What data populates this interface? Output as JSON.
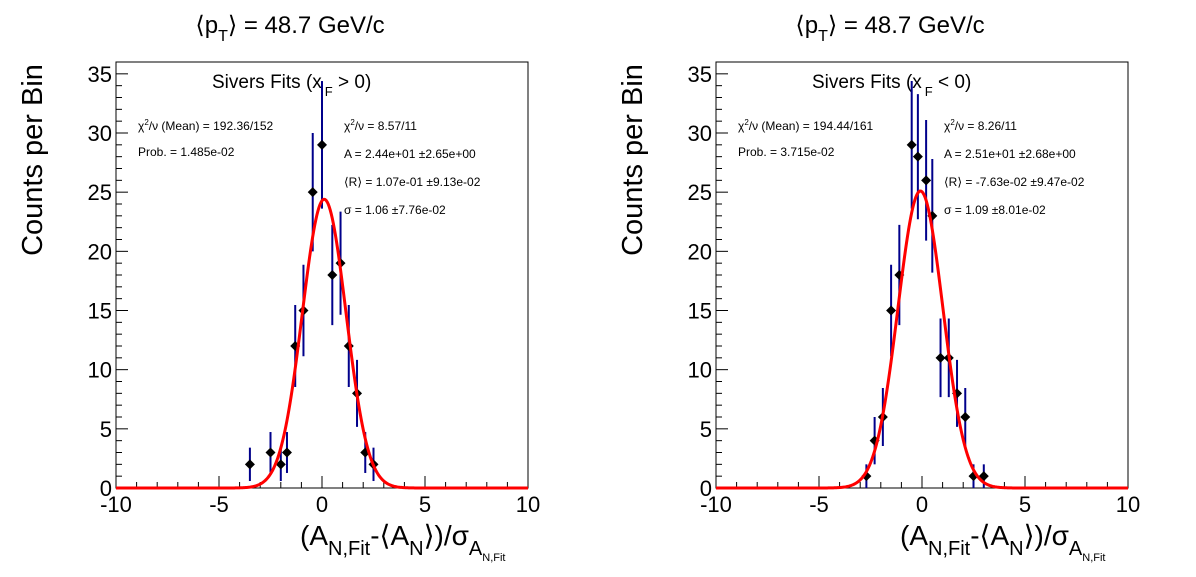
{
  "colors": {
    "fit": "#ff0000",
    "errorbar": "#00008b",
    "marker": "#000000",
    "frame": "#000000"
  },
  "chart_data": [
    {
      "type": "scatter",
      "title": {
        "prefix": "⟨p",
        "sub": "T",
        "suffix": "⟩ = 48.7 GeV/c"
      },
      "fit_title": {
        "prefix": "Sivers Fits (x",
        "sub": "F",
        "suffix": " > 0)"
      },
      "xlabel": {
        "main1": "(A",
        "sub1": "N,Fit",
        "main2": "-⟨A",
        "sub2": "N",
        "main3": "⟩)/σ",
        "sub3": "A",
        "subsub3": "N,Fit"
      },
      "ylabel": "Counts per Bin",
      "xlim": [
        -10,
        10
      ],
      "ylim": [
        0,
        36
      ],
      "xticks": [
        "-10",
        "-5",
        "0",
        "5",
        "10"
      ],
      "yticks": [
        "0",
        "5",
        "10",
        "15",
        "20",
        "25",
        "30",
        "35"
      ],
      "stats_left": [
        {
          "pre": "χ",
          "sup": "2",
          "post": "/ν  (Mean) = 192.36/152"
        },
        {
          "pre": "Prob. = 1.485e-02",
          "sup": "",
          "post": ""
        }
      ],
      "stats_right": [
        {
          "pre": "χ",
          "sup": "2",
          "post": "/ν  = 8.57/11"
        },
        {
          "pre": "A = 2.44e+01 ±2.65e+00",
          "sup": "",
          "post": ""
        },
        {
          "pre": "⟨R⟩ = 1.07e-01 ±9.13e-02",
          "sup": "",
          "post": ""
        },
        {
          "pre": "σ = 1.06 ±7.76e-02",
          "sup": "",
          "post": ""
        }
      ],
      "fit": {
        "A": 24.4,
        "mean": 0.107,
        "sigma": 1.06
      },
      "points": [
        {
          "x": -3.5,
          "y": 2,
          "err": 1.41
        },
        {
          "x": -2.5,
          "y": 3,
          "err": 1.73
        },
        {
          "x": -2.0,
          "y": 2,
          "err": 1.41
        },
        {
          "x": -1.7,
          "y": 3,
          "err": 1.73
        },
        {
          "x": -1.3,
          "y": 12,
          "err": 3.46
        },
        {
          "x": -0.9,
          "y": 15,
          "err": 3.87
        },
        {
          "x": -0.45,
          "y": 25,
          "err": 5.0
        },
        {
          "x": 0.0,
          "y": 29,
          "err": 5.39
        },
        {
          "x": 0.5,
          "y": 18,
          "err": 4.24
        },
        {
          "x": 0.9,
          "y": 19,
          "err": 4.36
        },
        {
          "x": 1.3,
          "y": 12,
          "err": 3.46
        },
        {
          "x": 1.7,
          "y": 8,
          "err": 2.83
        },
        {
          "x": 2.1,
          "y": 3,
          "err": 1.73
        },
        {
          "x": 2.5,
          "y": 2,
          "err": 1.41
        }
      ]
    },
    {
      "type": "scatter",
      "title": {
        "prefix": "⟨p",
        "sub": "T",
        "suffix": "⟩ = 48.7 GeV/c"
      },
      "fit_title": {
        "prefix": "Sivers Fits (x",
        "sub": "F",
        "suffix": " < 0)"
      },
      "xlabel": {
        "main1": "(A",
        "sub1": "N,Fit",
        "main2": "-⟨A",
        "sub2": "N",
        "main3": "⟩)/σ",
        "sub3": "A",
        "subsub3": "N,Fit"
      },
      "ylabel": "Counts per Bin",
      "xlim": [
        -10,
        10
      ],
      "ylim": [
        0,
        36
      ],
      "xticks": [
        "-10",
        "-5",
        "0",
        "5",
        "10"
      ],
      "yticks": [
        "0",
        "5",
        "10",
        "15",
        "20",
        "25",
        "30",
        "35"
      ],
      "stats_left": [
        {
          "pre": "χ",
          "sup": "2",
          "post": "/ν  (Mean) = 194.44/161"
        },
        {
          "pre": "Prob. = 3.715e-02",
          "sup": "",
          "post": ""
        }
      ],
      "stats_right": [
        {
          "pre": "χ",
          "sup": "2",
          "post": "/ν  = 8.26/11"
        },
        {
          "pre": "A = 2.51e+01 ±2.68e+00",
          "sup": "",
          "post": ""
        },
        {
          "pre": "⟨R⟩ = -7.63e-02 ±9.47e-02",
          "sup": "",
          "post": ""
        },
        {
          "pre": "σ = 1.09 ±8.01e-02",
          "sup": "",
          "post": ""
        }
      ],
      "fit": {
        "A": 25.1,
        "mean": -0.0763,
        "sigma": 1.09
      },
      "points": [
        {
          "x": -2.7,
          "y": 1,
          "err": 1.0
        },
        {
          "x": -2.3,
          "y": 4,
          "err": 2.0
        },
        {
          "x": -1.9,
          "y": 6,
          "err": 2.45
        },
        {
          "x": -1.5,
          "y": 15,
          "err": 3.87
        },
        {
          "x": -1.1,
          "y": 18,
          "err": 4.24
        },
        {
          "x": -0.5,
          "y": 29,
          "err": 5.39
        },
        {
          "x": -0.2,
          "y": 28,
          "err": 5.29
        },
        {
          "x": 0.2,
          "y": 26,
          "err": 5.1
        },
        {
          "x": 0.5,
          "y": 23,
          "err": 4.8
        },
        {
          "x": 0.9,
          "y": 11,
          "err": 3.32
        },
        {
          "x": 1.3,
          "y": 11,
          "err": 3.32
        },
        {
          "x": 1.7,
          "y": 8,
          "err": 2.83
        },
        {
          "x": 2.1,
          "y": 6,
          "err": 2.45
        },
        {
          "x": 2.5,
          "y": 1,
          "err": 1.0
        },
        {
          "x": 3.0,
          "y": 1,
          "err": 1.0
        }
      ]
    }
  ]
}
